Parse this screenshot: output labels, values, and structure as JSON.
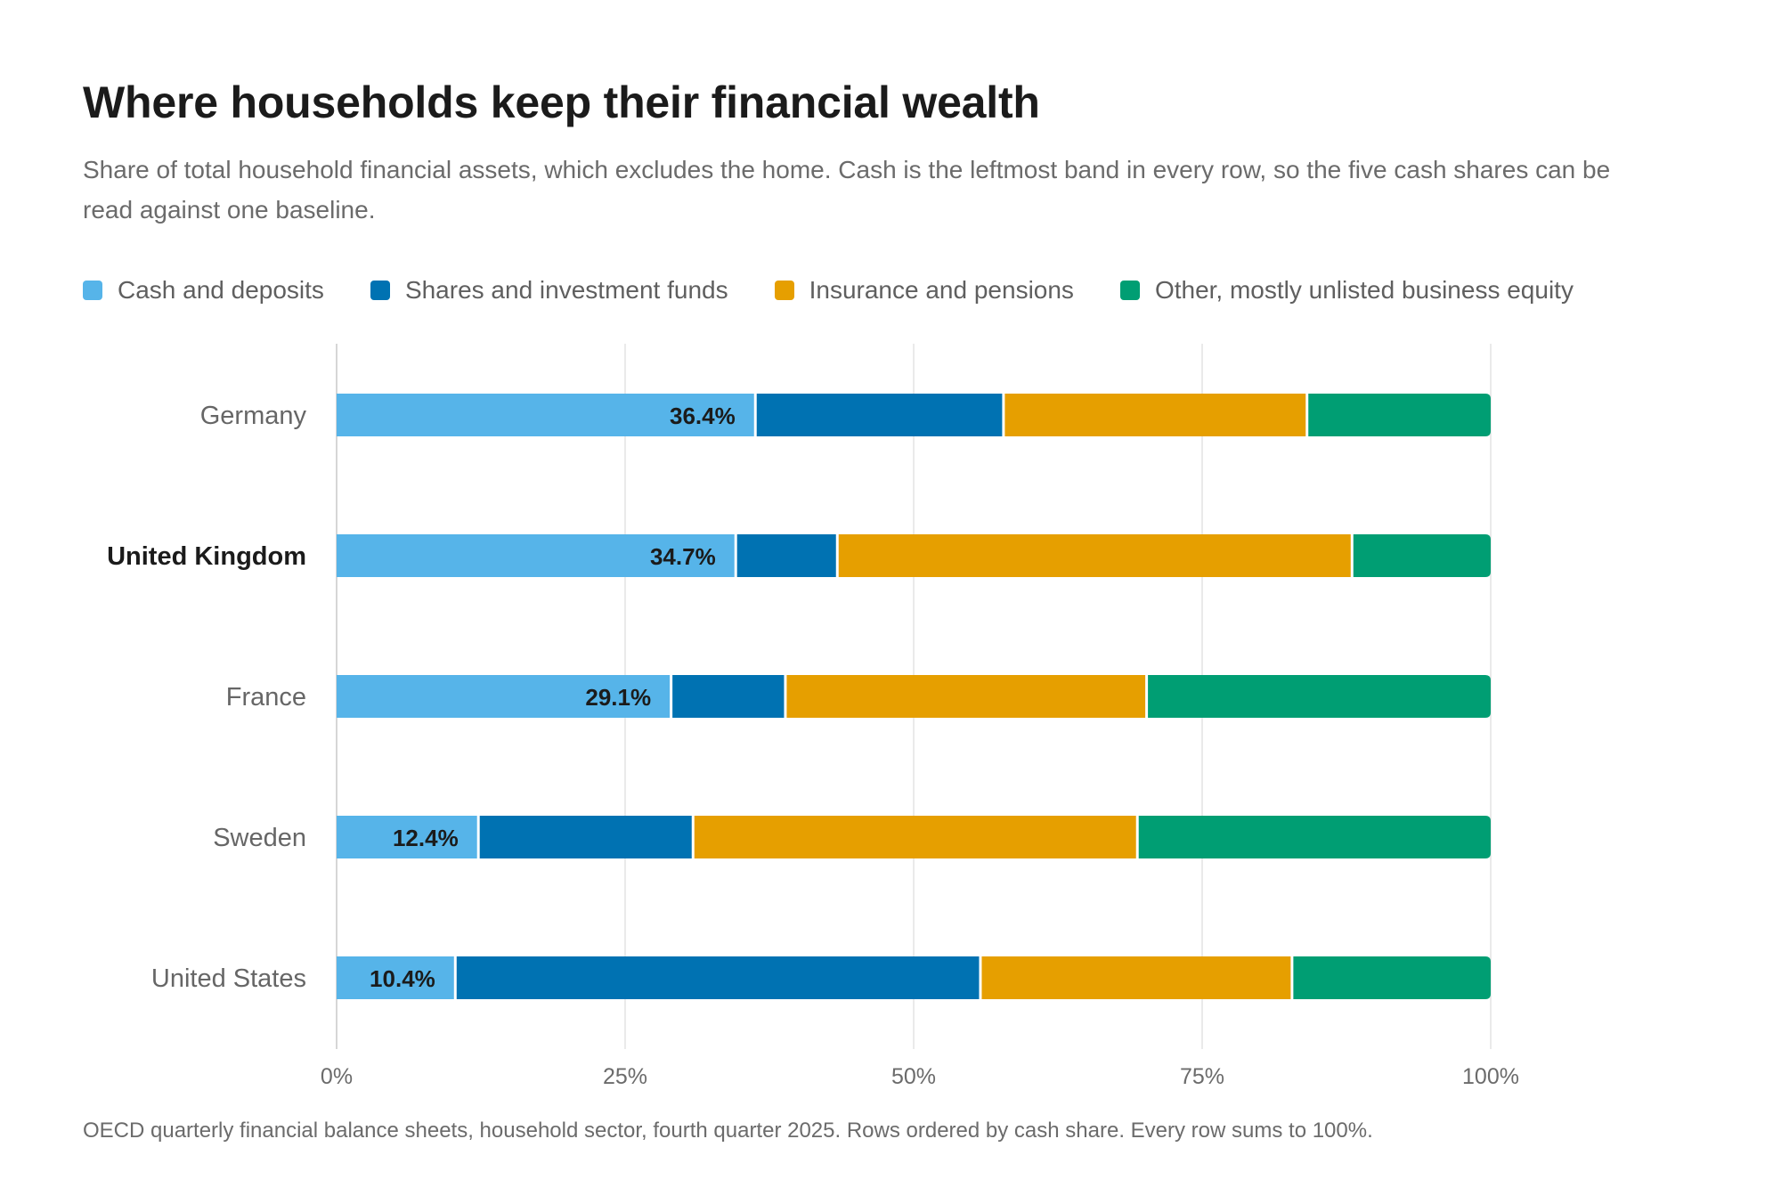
{
  "title": "Where households keep their financial wealth",
  "subtitle": "Share of total household financial assets, which excludes the home. Cash is the leftmost band in every row, so the five cash shares can be read against one baseline.",
  "source": "OECD quarterly financial balance sheets, household sector, fourth quarter 2025. Rows ordered by cash share. Every row sums to 100%.",
  "legend": [
    {
      "label": "Cash and deposits",
      "color": "#56b4e9"
    },
    {
      "label": "Shares and investment funds",
      "color": "#0072b2"
    },
    {
      "label": "Insurance and pensions",
      "color": "#e69f00"
    },
    {
      "label": "Other, mostly unlisted business equity",
      "color": "#009e73"
    }
  ],
  "chart_data": {
    "type": "bar",
    "orientation": "horizontal",
    "stacked": true,
    "categories": [
      "Germany",
      "United Kingdom",
      "France",
      "Sweden",
      "United States"
    ],
    "highlighted_category": "United Kingdom",
    "series": [
      {
        "name": "Cash and deposits",
        "color": "#56b4e9",
        "values": [
          36.4,
          34.7,
          29.1,
          12.4,
          10.4
        ]
      },
      {
        "name": "Shares and investment funds",
        "color": "#0072b2",
        "values": [
          21.5,
          8.8,
          9.9,
          18.6,
          45.5
        ]
      },
      {
        "name": "Insurance and pensions",
        "color": "#e69f00",
        "values": [
          26.3,
          44.6,
          31.3,
          38.5,
          27.0
        ]
      },
      {
        "name": "Other, mostly unlisted business equity",
        "color": "#009e73",
        "values": [
          15.8,
          11.9,
          29.7,
          30.5,
          17.1
        ]
      }
    ],
    "data_labels": [
      "36.4%",
      "34.7%",
      "29.1%",
      "12.4%",
      "10.4%"
    ],
    "xlim": [
      0,
      100
    ],
    "x_ticks": [
      0,
      25,
      50,
      75,
      100
    ],
    "x_tick_labels": [
      "0%",
      "25%",
      "50%",
      "75%",
      "100%"
    ],
    "grid": true,
    "legend_position": "top-left"
  }
}
